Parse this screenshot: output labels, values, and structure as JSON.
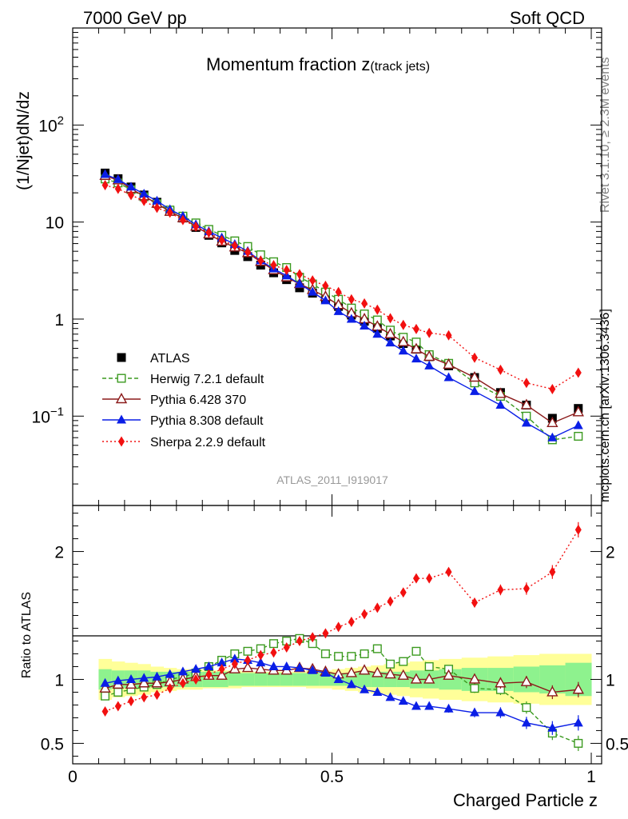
{
  "header": {
    "left": "7000 GeV pp",
    "right": "Soft QCD"
  },
  "side_labels": {
    "rivet": "Rivet 3.1.10, ≥ 2.3M events",
    "source": "mcplots.cern.ch [arXiv:1306.3436]"
  },
  "watermark": "ATLAS_2011_I919017",
  "colors": {
    "atlas": "#000000",
    "herwig": "#3b9a1f",
    "pythia6": "#8b1a1a",
    "pythia8": "#0a1ee6",
    "sherpa": "#f21010",
    "band_inner": "#8ef28e",
    "band_outer": "#ffff99"
  },
  "chart_data": [
    {
      "type": "scatter",
      "title_main": "Momentum fraction z",
      "title_sub": "(track jets)",
      "ylabel": "(1/Njet)dN/dz",
      "yscale": "log",
      "ylim": [
        0.012,
        1000
      ],
      "xlim": [
        0,
        1.02
      ],
      "ytick_labels": [
        "10^-1",
        "1",
        "10",
        "10^2"
      ],
      "legend_placement": "bottom-left",
      "series": [
        {
          "name": "ATLAS",
          "marker": "filled-square",
          "x": [
            0.0625,
            0.0875,
            0.1125,
            0.1375,
            0.1625,
            0.1875,
            0.2125,
            0.2375,
            0.2625,
            0.2875,
            0.3125,
            0.3375,
            0.3625,
            0.3875,
            0.4125,
            0.4375,
            0.4625,
            0.4875,
            0.5125,
            0.5375,
            0.5625,
            0.5875,
            0.6125,
            0.6375,
            0.6625,
            0.6875,
            0.725,
            0.775,
            0.825,
            0.875,
            0.925,
            0.975
          ],
          "y": [
            32,
            28,
            23,
            19,
            16,
            13,
            11,
            8.8,
            7.3,
            6.1,
            5.1,
            4.4,
            3.6,
            3.0,
            2.55,
            2.1,
            1.85,
            1.6,
            1.35,
            1.1,
            0.95,
            0.8,
            0.67,
            0.56,
            0.49,
            0.41,
            0.33,
            0.25,
            0.175,
            0.13,
            0.095,
            0.12
          ]
        },
        {
          "name": "Herwig 7.2.1 default",
          "marker": "open-square",
          "line": "dashed",
          "x": [
            0.0625,
            0.0875,
            0.1125,
            0.1375,
            0.1625,
            0.1875,
            0.2125,
            0.2375,
            0.2625,
            0.2875,
            0.3125,
            0.3375,
            0.3625,
            0.3875,
            0.4125,
            0.4375,
            0.4625,
            0.4875,
            0.5125,
            0.5375,
            0.5625,
            0.5875,
            0.6125,
            0.6375,
            0.6625,
            0.6875,
            0.725,
            0.775,
            0.825,
            0.875,
            0.925,
            0.975
          ],
          "y": [
            27.8,
            25.3,
            21.6,
            18.2,
            15.5,
            13.3,
            11.5,
            9.8,
            8.4,
            7.3,
            6.4,
            5.6,
            4.6,
            3.9,
            3.4,
            2.7,
            2.3,
            1.9,
            1.6,
            1.3,
            1.13,
            0.98,
            0.77,
            0.65,
            0.58,
            0.43,
            0.35,
            0.22,
            0.16,
            0.1,
            0.057,
            0.062
          ]
        },
        {
          "name": "Pythia 6.428 370",
          "marker": "open-triangle",
          "line": "solid",
          "x": [
            0.0625,
            0.0875,
            0.1125,
            0.1375,
            0.1625,
            0.1875,
            0.2125,
            0.2375,
            0.2625,
            0.2875,
            0.3125,
            0.3375,
            0.3625,
            0.3875,
            0.4125,
            0.4375,
            0.4625,
            0.4875,
            0.5125,
            0.5375,
            0.5625,
            0.5875,
            0.6125,
            0.6375,
            0.6625,
            0.6875,
            0.725,
            0.775,
            0.825,
            0.875,
            0.925,
            0.975
          ],
          "y": [
            30,
            27,
            22,
            18.5,
            15.5,
            12.8,
            11,
            9,
            7.5,
            6.3,
            5.5,
            4.8,
            3.9,
            3.2,
            2.7,
            2.3,
            2.0,
            1.7,
            1.4,
            1.15,
            1.0,
            0.84,
            0.7,
            0.58,
            0.49,
            0.41,
            0.34,
            0.25,
            0.17,
            0.13,
            0.085,
            0.11
          ]
        },
        {
          "name": "Pythia 8.308 default",
          "marker": "filled-triangle",
          "line": "solid",
          "x": [
            0.0625,
            0.0875,
            0.1125,
            0.1375,
            0.1625,
            0.1875,
            0.2125,
            0.2375,
            0.2625,
            0.2875,
            0.3125,
            0.3375,
            0.3625,
            0.3875,
            0.4125,
            0.4375,
            0.4625,
            0.4875,
            0.5125,
            0.5375,
            0.5625,
            0.5875,
            0.6125,
            0.6375,
            0.6625,
            0.6875,
            0.725,
            0.775,
            0.825,
            0.875,
            0.925,
            0.975
          ],
          "y": [
            31,
            27.5,
            23,
            19.5,
            16.5,
            13.5,
            11.5,
            9.4,
            8,
            6.9,
            5.9,
            5,
            4,
            3.3,
            2.8,
            2.3,
            1.9,
            1.55,
            1.2,
            1.0,
            0.85,
            0.7,
            0.57,
            0.47,
            0.39,
            0.33,
            0.25,
            0.18,
            0.13,
            0.085,
            0.06,
            0.08
          ]
        },
        {
          "name": "Sherpa 2.2.9 default",
          "marker": "filled-diamond",
          "line": "dotted",
          "x": [
            0.0625,
            0.0875,
            0.1125,
            0.1375,
            0.1625,
            0.1875,
            0.2125,
            0.2375,
            0.2625,
            0.2875,
            0.3125,
            0.3375,
            0.3625,
            0.3875,
            0.4125,
            0.4375,
            0.4625,
            0.4875,
            0.5125,
            0.5375,
            0.5625,
            0.5875,
            0.6125,
            0.6375,
            0.6625,
            0.6875,
            0.725,
            0.775,
            0.825,
            0.875,
            0.925,
            0.975
          ],
          "y": [
            24,
            22,
            19,
            16.5,
            14,
            12.5,
            10.5,
            9,
            7.8,
            6.5,
            5.7,
            4.9,
            4.0,
            3.6,
            3.2,
            2.9,
            2.5,
            2.2,
            1.9,
            1.6,
            1.45,
            1.25,
            1.02,
            0.87,
            0.79,
            0.72,
            0.68,
            0.4,
            0.3,
            0.22,
            0.19,
            0.28
          ]
        }
      ]
    },
    {
      "type": "scatter",
      "xlabel": "Charged Particle z",
      "ylabel": "Ratio to ATLAS",
      "ylim": [
        0.34,
        2.36
      ],
      "xlim": [
        0,
        1.02
      ],
      "xtick_labels": [
        "0",
        "0.5",
        "1"
      ],
      "ytick_labels": [
        "0.5",
        "1",
        "2"
      ],
      "band_x": [
        0.0625,
        0.0875,
        0.1125,
        0.1375,
        0.1625,
        0.1875,
        0.2125,
        0.2375,
        0.2625,
        0.2875,
        0.3125,
        0.3375,
        0.3625,
        0.3875,
        0.4125,
        0.4375,
        0.4625,
        0.4875,
        0.5125,
        0.5375,
        0.5625,
        0.5875,
        0.6125,
        0.6375,
        0.6625,
        0.6875,
        0.725,
        0.775,
        0.825,
        0.875,
        0.925,
        0.975
      ],
      "band_inner": [
        0.08,
        0.07,
        0.07,
        0.07,
        0.06,
        0.06,
        0.06,
        0.06,
        0.06,
        0.06,
        0.05,
        0.05,
        0.05,
        0.05,
        0.05,
        0.05,
        0.05,
        0.05,
        0.05,
        0.05,
        0.06,
        0.06,
        0.06,
        0.06,
        0.07,
        0.07,
        0.08,
        0.09,
        0.09,
        0.1,
        0.11,
        0.13
      ],
      "band_outer": [
        0.16,
        0.14,
        0.13,
        0.12,
        0.1,
        0.09,
        0.08,
        0.08,
        0.07,
        0.07,
        0.07,
        0.06,
        0.06,
        0.06,
        0.06,
        0.06,
        0.07,
        0.07,
        0.08,
        0.09,
        0.1,
        0.11,
        0.12,
        0.13,
        0.14,
        0.15,
        0.16,
        0.17,
        0.18,
        0.19,
        0.2,
        0.2
      ],
      "series": [
        {
          "name": "Herwig 7.2.1 default",
          "marker": "open-square",
          "line": "dashed",
          "x": [
            0.0625,
            0.0875,
            0.1125,
            0.1375,
            0.1625,
            0.1875,
            0.2125,
            0.2375,
            0.2625,
            0.2875,
            0.3125,
            0.3375,
            0.3625,
            0.3875,
            0.4125,
            0.4375,
            0.4625,
            0.4875,
            0.5125,
            0.5375,
            0.5625,
            0.5875,
            0.6125,
            0.6375,
            0.6625,
            0.6875,
            0.725,
            0.775,
            0.825,
            0.875,
            0.925,
            0.975
          ],
          "y": [
            0.87,
            0.9,
            0.92,
            0.94,
            0.96,
            1.0,
            1.02,
            1.05,
            1.1,
            1.15,
            1.2,
            1.22,
            1.24,
            1.28,
            1.3,
            1.32,
            1.28,
            1.2,
            1.18,
            1.18,
            1.2,
            1.24,
            1.12,
            1.14,
            1.22,
            1.1,
            1.08,
            0.93,
            0.92,
            0.78,
            0.58,
            0.5
          ]
        },
        {
          "name": "Pythia 6.428 370",
          "marker": "open-triangle",
          "line": "solid",
          "x": [
            0.0625,
            0.0875,
            0.1125,
            0.1375,
            0.1625,
            0.1875,
            0.2125,
            0.2375,
            0.2625,
            0.2875,
            0.3125,
            0.3375,
            0.3625,
            0.3875,
            0.4125,
            0.4375,
            0.4625,
            0.4875,
            0.5125,
            0.5375,
            0.5625,
            0.5875,
            0.6125,
            0.6375,
            0.6625,
            0.6875,
            0.725,
            0.775,
            0.825,
            0.875,
            0.925,
            0.975
          ],
          "y": [
            0.93,
            0.96,
            0.96,
            0.97,
            0.97,
            0.98,
            1.0,
            1.02,
            1.03,
            1.03,
            1.08,
            1.09,
            1.08,
            1.07,
            1.07,
            1.09,
            1.08,
            1.06,
            1.04,
            1.05,
            1.07,
            1.05,
            1.04,
            1.03,
            1.0,
            1.0,
            1.03,
            1.0,
            0.97,
            0.98,
            0.9,
            0.92
          ]
        },
        {
          "name": "Pythia 8.308 default",
          "marker": "filled-triangle",
          "line": "solid",
          "x": [
            0.0625,
            0.0875,
            0.1125,
            0.1375,
            0.1625,
            0.1875,
            0.2125,
            0.2375,
            0.2625,
            0.2875,
            0.3125,
            0.3375,
            0.3625,
            0.3875,
            0.4125,
            0.4375,
            0.4625,
            0.4875,
            0.5125,
            0.5375,
            0.5625,
            0.5875,
            0.6125,
            0.6375,
            0.6625,
            0.6875,
            0.725,
            0.775,
            0.825,
            0.875,
            0.925,
            0.975
          ],
          "y": [
            0.97,
            0.99,
            1.0,
            1.01,
            1.02,
            1.04,
            1.06,
            1.08,
            1.1,
            1.13,
            1.16,
            1.15,
            1.13,
            1.1,
            1.1,
            1.09,
            1.07,
            1.05,
            1.0,
            0.96,
            0.92,
            0.9,
            0.86,
            0.83,
            0.79,
            0.79,
            0.77,
            0.74,
            0.74,
            0.66,
            0.62,
            0.66
          ]
        },
        {
          "name": "Sherpa 2.2.9 default",
          "marker": "filled-diamond",
          "line": "dotted",
          "x": [
            0.0625,
            0.0875,
            0.1125,
            0.1375,
            0.1625,
            0.1875,
            0.2125,
            0.2375,
            0.2625,
            0.2875,
            0.3125,
            0.3375,
            0.3625,
            0.3875,
            0.4125,
            0.4375,
            0.4625,
            0.4875,
            0.5125,
            0.5375,
            0.5625,
            0.5875,
            0.6125,
            0.6375,
            0.6625,
            0.6875,
            0.725,
            0.775,
            0.825,
            0.875,
            0.925,
            0.975
          ],
          "y": [
            0.75,
            0.79,
            0.83,
            0.86,
            0.88,
            0.93,
            0.97,
            1.0,
            1.04,
            1.08,
            1.12,
            1.15,
            1.19,
            1.21,
            1.25,
            1.3,
            1.33,
            1.36,
            1.41,
            1.45,
            1.51,
            1.56,
            1.61,
            1.68,
            1.79,
            1.79,
            1.84,
            1.6,
            1.7,
            1.71,
            1.84,
            2.17
          ]
        }
      ]
    }
  ]
}
